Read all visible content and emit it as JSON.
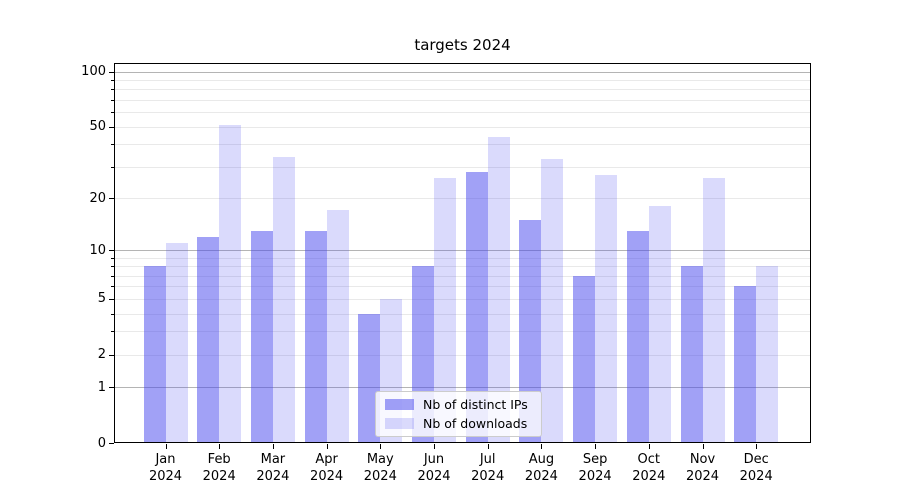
{
  "chart_data": {
    "type": "bar",
    "title": "targets 2024",
    "categories": [
      "Jan",
      "Feb",
      "Mar",
      "Apr",
      "May",
      "Jun",
      "Jul",
      "Aug",
      "Sep",
      "Oct",
      "Nov",
      "Dec"
    ],
    "category_year": "2024",
    "series": [
      {
        "name": "Nb of distinct IPs",
        "key": "ips",
        "color": "rgba(68,68,238,0.5)",
        "values": [
          8,
          12,
          13,
          13,
          4,
          8,
          28,
          15,
          7,
          13,
          8,
          6
        ]
      },
      {
        "name": "Nb of downloads",
        "key": "downloads",
        "color": "rgba(68,68,238,0.2)",
        "values": [
          11,
          51,
          34,
          17,
          5,
          26,
          44,
          33,
          27,
          18,
          26,
          8
        ]
      }
    ],
    "yscale": "log1p",
    "ylim": [
      0,
      111.5
    ],
    "yticks": [
      0,
      1,
      2,
      5,
      10,
      20,
      50,
      100
    ],
    "major_gridlines": [
      1,
      10,
      100
    ],
    "minor_gridlines": [
      2,
      3,
      4,
      5,
      6,
      7,
      8,
      9,
      20,
      30,
      40,
      50,
      60,
      70,
      80,
      90
    ],
    "grid_major_color": "#b4b4b4",
    "grid_minor_color": "#e9e9e9",
    "legend_position": "lower center",
    "grid": "on"
  }
}
